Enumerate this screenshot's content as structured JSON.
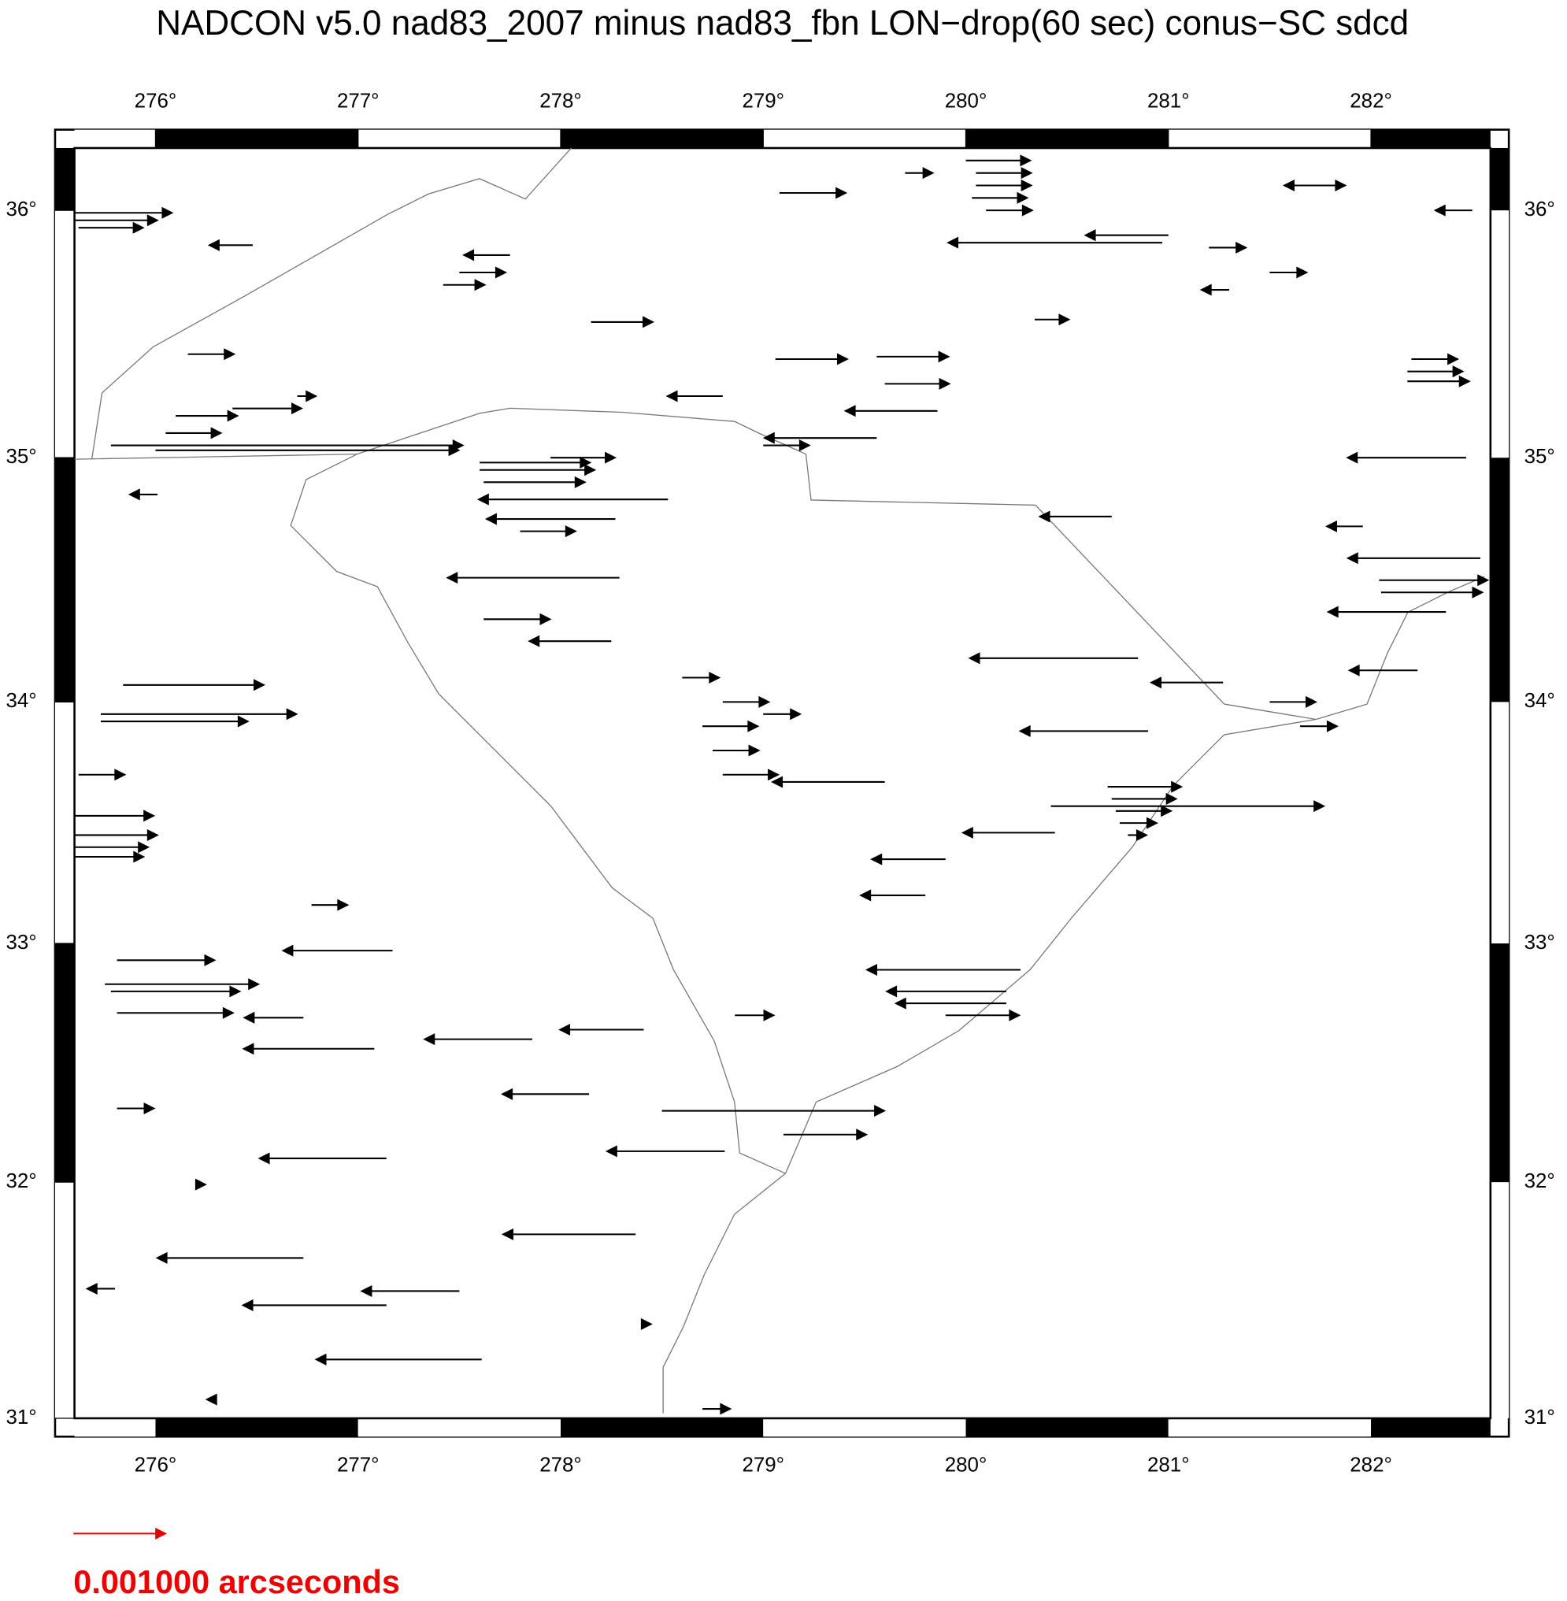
{
  "map": {
    "title": "NADCON v5.0 nad83_2007 minus nad83_fbn LON−drop(60 sec) conus−SC sdcd",
    "xlim": [
      275.6,
      282.59
    ],
    "ylim": [
      31,
      36.25
    ],
    "xticks": [
      {
        "value": 276,
        "label": "276°"
      },
      {
        "value": 277,
        "label": "277°"
      },
      {
        "value": 278,
        "label": "278°"
      },
      {
        "value": 279,
        "label": "279°"
      },
      {
        "value": 280,
        "label": "280°"
      },
      {
        "value": 281,
        "label": "281°"
      },
      {
        "value": 282,
        "label": "282°"
      }
    ],
    "yticks": [
      {
        "value": 31,
        "label": "31°"
      },
      {
        "value": 32,
        "label": "32°"
      },
      {
        "value": 33,
        "label": "33°"
      },
      {
        "value": 34,
        "label": "34°"
      },
      {
        "value": 35,
        "label": "35°"
      },
      {
        "value": 36,
        "label": "36°"
      }
    ],
    "vectors": [
      [
        275.6,
        35.99,
        0.00106
      ],
      [
        275.6,
        35.96,
        0.0009
      ],
      [
        275.62,
        35.93,
        0.0007
      ],
      [
        276.48,
        35.86,
        -0.00047
      ],
      [
        277.75,
        35.82,
        -0.0005
      ],
      [
        277.5,
        35.75,
        0.0005
      ],
      [
        277.42,
        35.7,
        0.00045
      ],
      [
        275.78,
        35.05,
        0.00383
      ],
      [
        276.0,
        35.03,
        0.0033
      ],
      [
        276.05,
        35.1,
        0.0006
      ],
      [
        276.1,
        35.17,
        0.00067
      ],
      [
        276.16,
        35.42,
        0.0005
      ],
      [
        276.38,
        35.2,
        0.00075
      ],
      [
        276.7,
        35.25,
        0.0002
      ],
      [
        276.01,
        34.85,
        -0.0003
      ],
      [
        277.95,
        35.0,
        0.0007
      ],
      [
        277.6,
        34.98,
        0.0012
      ],
      [
        277.6,
        34.95,
        0.00125
      ],
      [
        277.62,
        34.9,
        0.0011
      ],
      [
        278.53,
        34.83,
        -0.00206
      ],
      [
        278.27,
        34.75,
        -0.0014
      ],
      [
        277.8,
        34.7,
        0.0006
      ],
      [
        278.29,
        34.51,
        -0.00187
      ],
      [
        277.62,
        34.34,
        0.00072
      ],
      [
        278.25,
        34.25,
        -0.00089
      ],
      [
        278.15,
        35.55,
        0.00067
      ],
      [
        279.08,
        36.07,
        0.00072
      ],
      [
        279.56,
        35.41,
        0.00078
      ],
      [
        279.06,
        35.4,
        0.00078
      ],
      [
        279.86,
        35.19,
        -0.001
      ],
      [
        279.56,
        35.08,
        -0.00122
      ],
      [
        279.0,
        35.05,
        0.0005
      ],
      [
        278.8,
        35.25,
        -0.0006
      ],
      [
        280.34,
        35.56,
        0.00037
      ],
      [
        280.97,
        35.87,
        -0.00233
      ],
      [
        281.0,
        35.9,
        -0.0009
      ],
      [
        280.05,
        36.15,
        0.0006
      ],
      [
        280.05,
        36.1,
        0.0006
      ],
      [
        280.03,
        36.05,
        0.0006
      ],
      [
        280.0,
        36.2,
        0.0007
      ],
      [
        280.1,
        36.0,
        0.0005
      ],
      [
        279.7,
        36.15,
        0.0003
      ],
      [
        282.47,
        35.0,
        -0.00129
      ],
      [
        282.54,
        34.59,
        -0.00144
      ],
      [
        282.04,
        34.5,
        0.00118
      ],
      [
        282.05,
        34.45,
        0.0011
      ],
      [
        282.37,
        34.37,
        -0.00128
      ],
      [
        281.96,
        34.72,
        -0.00039
      ],
      [
        282.23,
        34.13,
        -0.00074
      ],
      [
        282.18,
        35.31,
        0.00067
      ],
      [
        282.18,
        35.35,
        0.0006
      ],
      [
        282.2,
        35.4,
        0.0005
      ],
      [
        282.5,
        36.0,
        -0.0004
      ],
      [
        281.8,
        36.1,
        -0.0005
      ],
      [
        280.7,
        33.65,
        0.0008
      ],
      [
        280.72,
        33.6,
        0.0007
      ],
      [
        280.74,
        33.55,
        0.0006
      ],
      [
        280.76,
        33.5,
        0.0004
      ],
      [
        280.8,
        33.45,
        0.0002
      ],
      [
        280.42,
        33.57,
        0.00297
      ],
      [
        280.85,
        34.18,
        -0.00183
      ],
      [
        280.9,
        33.88,
        -0.00139
      ],
      [
        280.44,
        33.46,
        -0.001
      ],
      [
        280.72,
        34.76,
        -0.00078
      ],
      [
        281.27,
        34.08,
        -0.00078
      ],
      [
        281.65,
        33.9,
        0.0004
      ],
      [
        281.5,
        34.0,
        0.0005
      ],
      [
        280.27,
        32.89,
        -0.00167
      ],
      [
        280.2,
        32.8,
        -0.0013
      ],
      [
        280.2,
        32.75,
        -0.0012
      ],
      [
        279.9,
        32.7,
        0.0008
      ],
      [
        279.6,
        33.67,
        -0.00122
      ],
      [
        279.8,
        33.2,
        -0.0007
      ],
      [
        279.9,
        33.35,
        -0.0008
      ],
      [
        278.8,
        34.0,
        0.0005
      ],
      [
        278.7,
        33.9,
        0.0006
      ],
      [
        278.75,
        33.8,
        0.0005
      ],
      [
        278.8,
        33.7,
        0.0006
      ],
      [
        278.6,
        34.1,
        0.0004
      ],
      [
        279.0,
        33.95,
        0.0004
      ],
      [
        275.6,
        33.53,
        0.00086
      ],
      [
        275.6,
        33.45,
        0.0009
      ],
      [
        275.6,
        33.4,
        0.0008
      ],
      [
        275.6,
        33.36,
        0.00075
      ],
      [
        275.62,
        33.7,
        0.0005
      ],
      [
        275.84,
        34.07,
        0.00153
      ],
      [
        275.73,
        33.95,
        0.00213
      ],
      [
        275.73,
        33.92,
        0.0016
      ],
      [
        275.81,
        32.93,
        0.00106
      ],
      [
        275.75,
        32.83,
        0.00167
      ],
      [
        275.78,
        32.8,
        0.0014
      ],
      [
        275.81,
        32.71,
        0.00126
      ],
      [
        276.73,
        32.69,
        -0.00064
      ],
      [
        277.17,
        32.97,
        -0.00119
      ],
      [
        276.77,
        33.16,
        0.00039
      ],
      [
        277.08,
        32.56,
        -0.00142
      ],
      [
        277.86,
        32.6,
        -0.00117
      ],
      [
        278.41,
        32.64,
        -0.00091
      ],
      [
        278.14,
        32.37,
        -0.00094
      ],
      [
        277.14,
        32.1,
        -0.00138
      ],
      [
        278.81,
        32.13,
        -0.00128
      ],
      [
        278.5,
        32.3,
        0.00242
      ],
      [
        278.86,
        32.7,
        0.00042
      ],
      [
        279.1,
        32.2,
        0.0009
      ],
      [
        275.81,
        32.31,
        0.0004
      ],
      [
        276.73,
        31.68,
        -0.00159
      ],
      [
        277.5,
        31.54,
        -0.00106
      ],
      [
        277.14,
        31.48,
        -0.00156
      ],
      [
        277.61,
        31.25,
        -0.0018
      ],
      [
        278.37,
        31.78,
        -0.00144
      ],
      [
        278.7,
        31.04,
        0.0003
      ],
      [
        276.2,
        31.99,
        0.0001
      ],
      [
        275.8,
        31.55,
        -0.0003
      ],
      [
        276.3,
        31.08,
        -0.0001
      ],
      [
        278.4,
        31.4,
        0.0001
      ],
      [
        281.6,
        36.1,
        0.0006
      ],
      [
        281.5,
        35.75,
        0.0004
      ],
      [
        281.2,
        35.85,
        0.0004
      ],
      [
        281.3,
        35.68,
        -0.0003
      ],
      [
        279.6,
        35.3,
        0.0007
      ]
    ],
    "legend": {
      "value": 0.001,
      "label": "0.001000 arcseconds",
      "color": "#e00000"
    }
  }
}
